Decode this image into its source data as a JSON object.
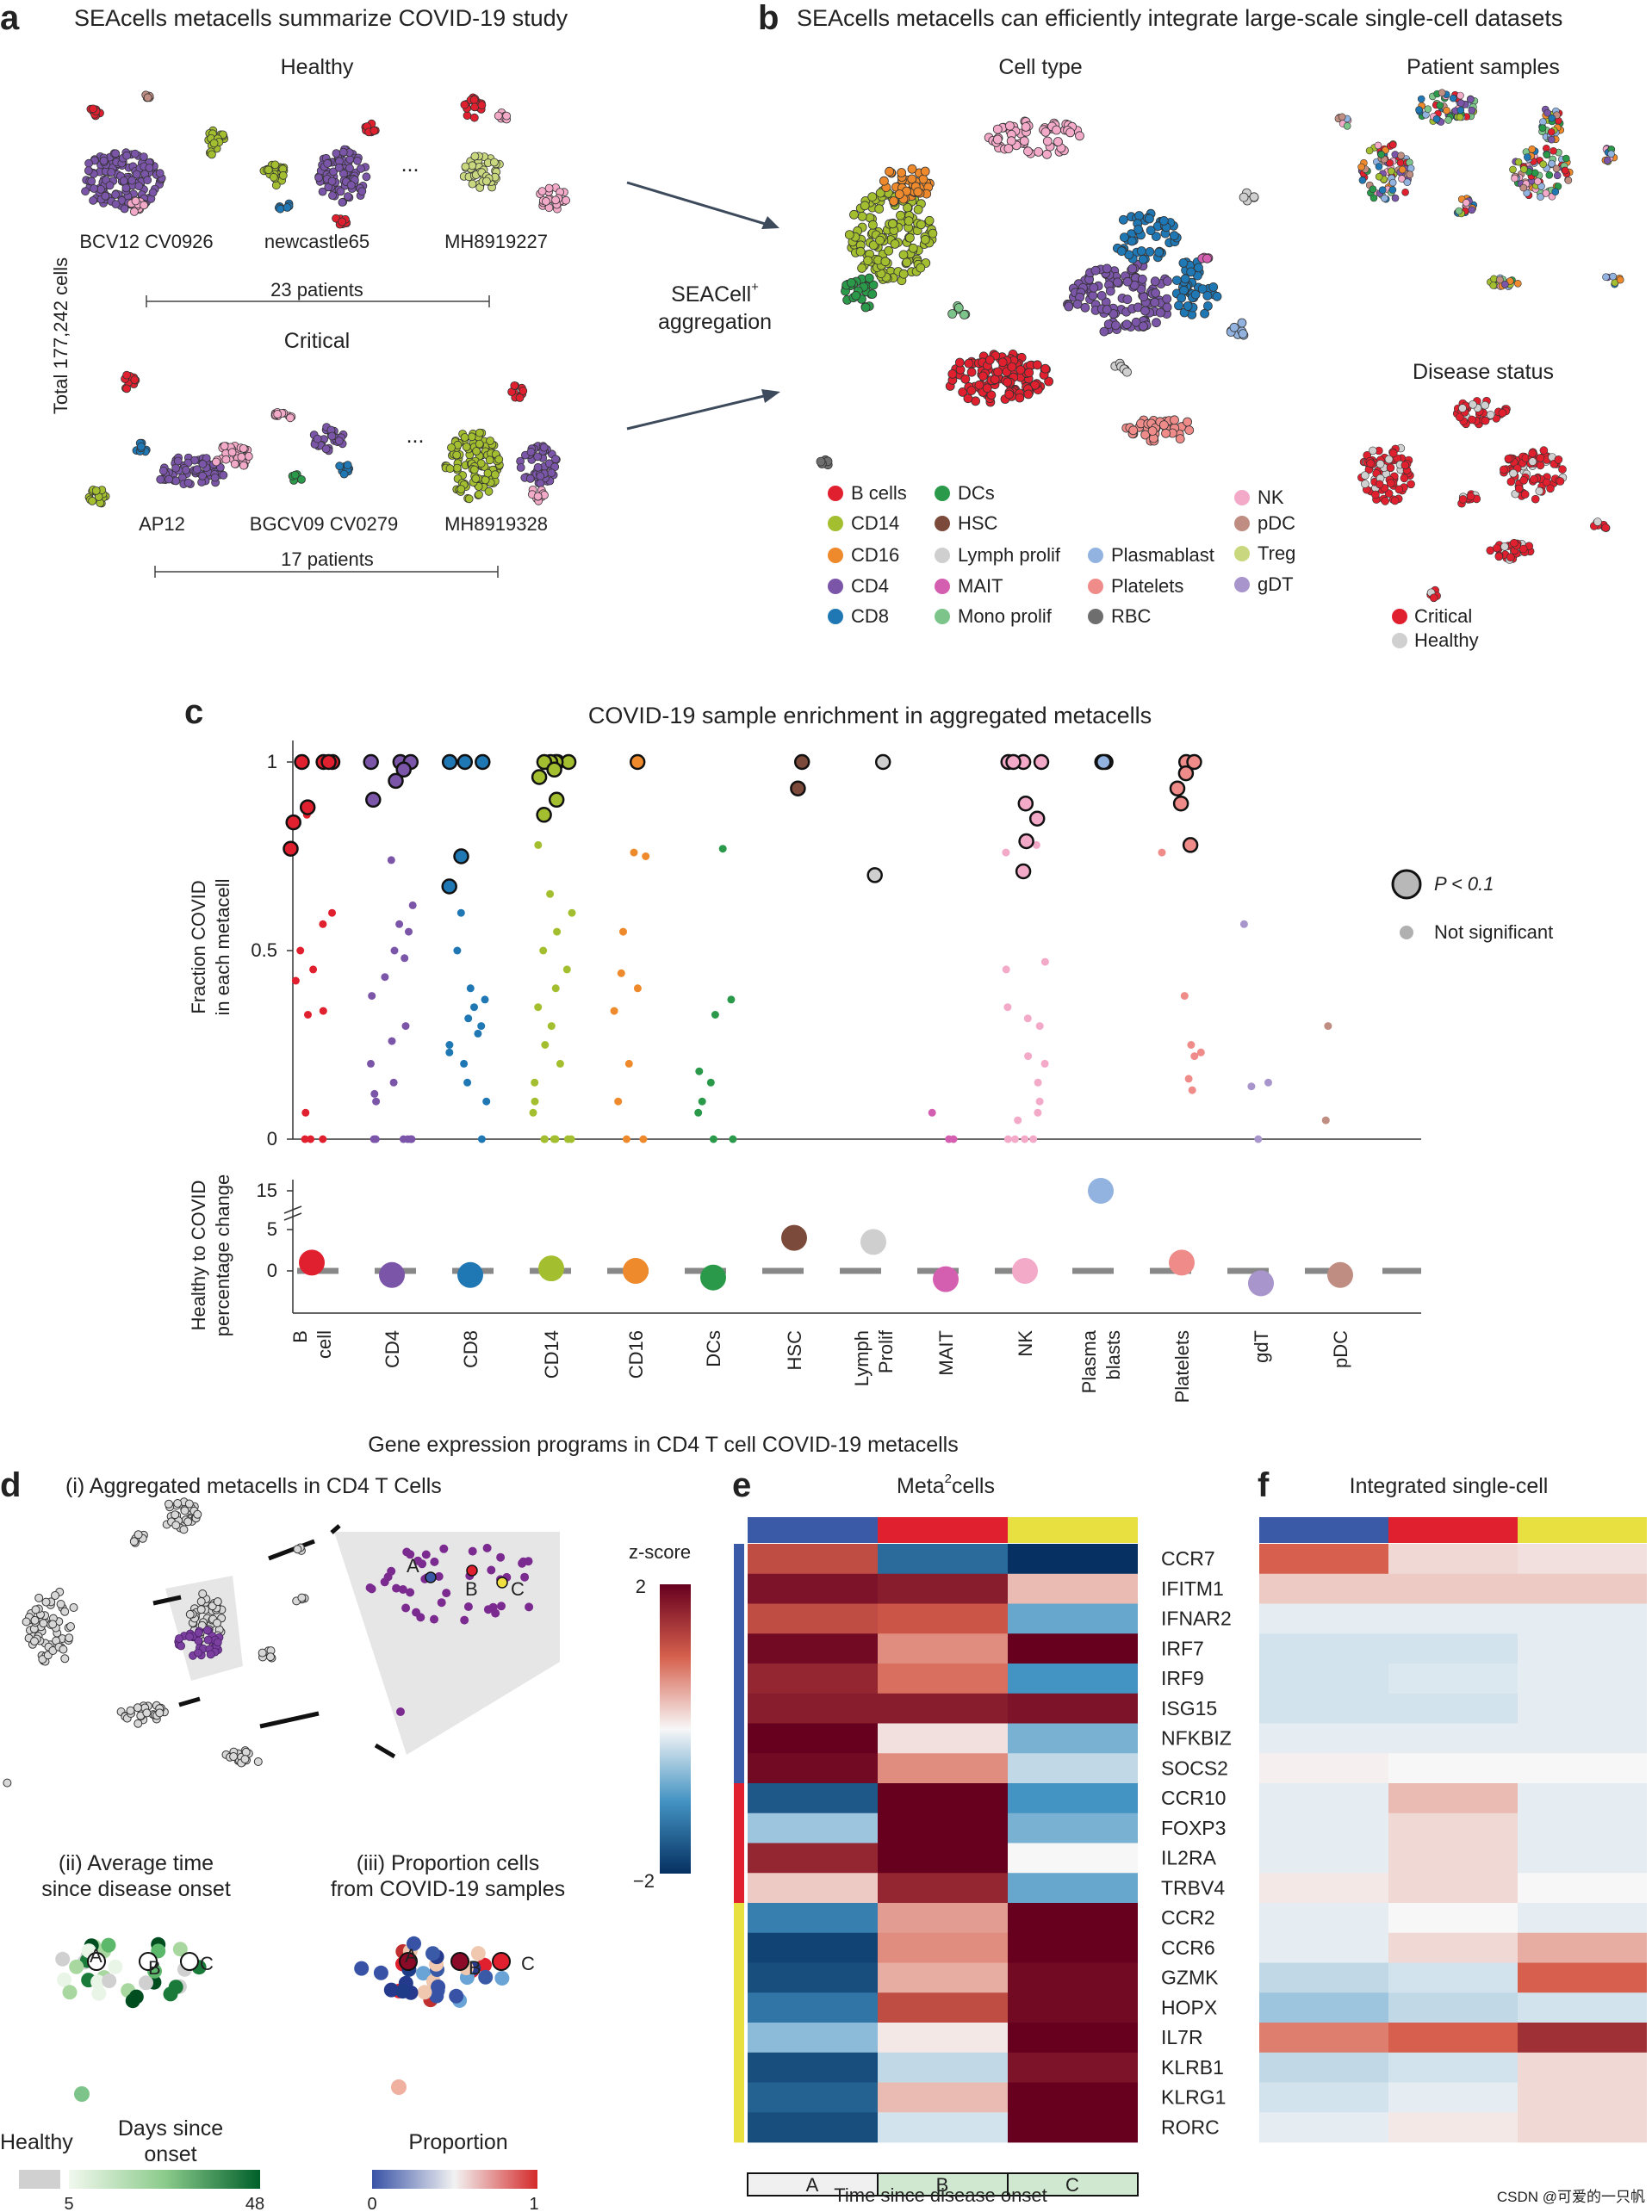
{
  "panel_a": {
    "label": "a",
    "title": "SEAcells metacells summarize COVID-19 study",
    "healthy_label": "Healthy",
    "critical_label": "Critical",
    "total_cells_label": "Total 177,242 cells",
    "ellipsis": "...",
    "healthy_samples": [
      "BCV12 CV0926",
      "newcastle65",
      "MH8919227"
    ],
    "critical_samples": [
      "AP12",
      "BGCV09 CV0279",
      "MH8919328"
    ],
    "healthy_count": "23 patients",
    "critical_count": "17 patients",
    "aggregation_label_1": "SEACell",
    "aggregation_sup": "+",
    "aggregation_label_2": "aggregation"
  },
  "panel_b": {
    "label": "b",
    "title": "SEAcells metacells can efficiently integrate large-scale single-cell datasets",
    "celltype_title": "Cell type",
    "patient_title": "Patient samples",
    "disease_title": "Disease status",
    "legend": [
      {
        "name": "B cells",
        "color": "#e0202e"
      },
      {
        "name": "CD14",
        "color": "#a3bf2f"
      },
      {
        "name": "CD16",
        "color": "#ee8a2c"
      },
      {
        "name": "CD4",
        "color": "#7b55a8"
      },
      {
        "name": "CD8",
        "color": "#1f77b4"
      },
      {
        "name": "DCs",
        "color": "#2a9a4a"
      },
      {
        "name": "HSC",
        "color": "#7b4a3a"
      },
      {
        "name": "Lymph prolif",
        "color": "#cfcfcf"
      },
      {
        "name": "MAIT",
        "color": "#d45fb0"
      },
      {
        "name": "Mono prolif",
        "color": "#7cc489"
      },
      {
        "name": "Plasmablast",
        "color": "#92b3e0"
      },
      {
        "name": "Platelets",
        "color": "#ef8c8a"
      },
      {
        "name": "RBC",
        "color": "#6e6e6e"
      },
      {
        "name": "NK",
        "color": "#f3a9c8"
      },
      {
        "name": "pDC",
        "color": "#c08d82"
      },
      {
        "name": "Treg",
        "color": "#c9d77e"
      },
      {
        "name": "gDT",
        "color": "#a895cc"
      }
    ],
    "disease_legend": [
      {
        "name": "Critical",
        "color": "#e0202e"
      },
      {
        "name": "Healthy",
        "color": "#d0d0d0"
      }
    ]
  },
  "panel_c": {
    "label": "c",
    "title": "COVID-19 sample enrichment in aggregated metacells",
    "ylabel_top_1": "Fraction COVID",
    "ylabel_top_2": "in each metacell",
    "ylabel_bottom_1": "Healthy to COVID",
    "ylabel_bottom_2": "percentage change",
    "sig_legend": "P < 0.1",
    "nonsig_legend": "Not significant"
  },
  "panel_def": {
    "title": "Gene expression programs in CD4 T cell COVID-19 metacells",
    "d_label": "d",
    "d_i": "(i) Aggregated metacells in CD4 T Cells",
    "d_ii_1": "(ii) Average time",
    "d_ii_2": "since disease onset",
    "d_iii_1": "(iii) Proportion cells",
    "d_iii_2": "from COVID-19 samples",
    "point_labels": [
      "A",
      "B",
      "C"
    ],
    "healthy_label": "Healthy",
    "days_label_1": "Days since",
    "days_label_2": "onset",
    "days_min": "5",
    "days_max": "48",
    "proportion_label": "Proportion",
    "prop_min": "0",
    "prop_max": "1",
    "zscore_label": "z-score",
    "z_max": "2",
    "z_min": "−2",
    "e_label": "e",
    "e_title_pre": "Meta",
    "e_title_sup": "2",
    "e_title_post": "cells",
    "f_label": "f",
    "f_title": "Integrated single-cell",
    "time_axis_label": "Time since disease onset",
    "watermark": "CSDN @可爱的一只帆"
  },
  "chart_data": [
    {
      "type": "scatter",
      "title": "COVID-19 sample enrichment in aggregated metacells",
      "ylabel": "Fraction COVID in each metacell",
      "ylim": [
        0,
        1
      ],
      "yticks": [
        0,
        0.5,
        1
      ],
      "categories": [
        "B cell",
        "CD4",
        "CD8",
        "CD14",
        "CD16",
        "DCs",
        "HSC",
        "Lymph Prolif",
        "MAIT",
        "NK",
        "Plasma blasts",
        "Platelets",
        "gdT",
        "pDC"
      ],
      "legend": [
        "P < 0.1",
        "Not significant"
      ],
      "series": [
        {
          "category": "B cell",
          "significant": [
            1,
            1,
            1,
            1,
            0.88,
            0.84,
            0.77
          ],
          "not_significant": [
            0.86,
            0.6,
            0.57,
            0.5,
            0.45,
            0.42,
            0.34,
            0.33,
            0.07,
            0,
            0,
            0
          ]
        },
        {
          "category": "CD4",
          "significant": [
            1,
            1,
            1,
            0.98,
            0.95,
            0.9
          ],
          "not_significant": [
            0.74,
            0.62,
            0.57,
            0.55,
            0.5,
            0.48,
            0.43,
            0.38,
            0.3,
            0.26,
            0.2,
            0.15,
            0.12,
            0.1,
            0,
            0,
            0,
            0,
            0,
            0
          ]
        },
        {
          "category": "CD8",
          "significant": [
            1,
            1,
            1,
            0.75,
            0.67
          ],
          "not_significant": [
            0.6,
            0.5,
            0.4,
            0.37,
            0.35,
            0.32,
            0.3,
            0.28,
            0.25,
            0.23,
            0.2,
            0.15,
            0.1,
            0
          ]
        },
        {
          "category": "CD14",
          "significant": [
            1,
            1,
            1,
            1,
            1,
            0.98,
            0.96,
            0.9,
            0.86
          ],
          "not_significant": [
            0.78,
            0.65,
            0.6,
            0.55,
            0.5,
            0.45,
            0.4,
            0.35,
            0.3,
            0.25,
            0.2,
            0.15,
            0.1,
            0.07,
            0,
            0,
            0,
            0,
            0,
            0
          ]
        },
        {
          "category": "CD16",
          "significant": [
            1
          ],
          "not_significant": [
            0.76,
            0.75,
            0.55,
            0.44,
            0.4,
            0.34,
            0.2,
            0.1,
            0,
            0
          ]
        },
        {
          "category": "DCs",
          "significant": [],
          "not_significant": [
            0.77,
            0.37,
            0.33,
            0.18,
            0.15,
            0.1,
            0.07,
            0,
            0
          ]
        },
        {
          "category": "HSC",
          "significant": [
            1,
            0.93
          ],
          "not_significant": []
        },
        {
          "category": "Lymph Prolif",
          "significant": [
            1,
            0.7
          ],
          "not_significant": []
        },
        {
          "category": "MAIT",
          "significant": [],
          "not_significant": [
            0.07,
            0,
            0
          ]
        },
        {
          "category": "NK",
          "significant": [
            1,
            1,
            1,
            1,
            0.89,
            0.85,
            0.79,
            0.71
          ],
          "not_significant": [
            0.78,
            0.76,
            0.47,
            0.45,
            0.35,
            0.32,
            0.3,
            0.22,
            0.2,
            0.15,
            0.1,
            0.07,
            0.05,
            0,
            0,
            0,
            0
          ]
        },
        {
          "category": "Plasma blasts",
          "significant": [
            1,
            1,
            1
          ],
          "not_significant": []
        },
        {
          "category": "Platelets",
          "significant": [
            1,
            1,
            0.97,
            0.93,
            0.89,
            0.78
          ],
          "not_significant": [
            0.76,
            0.38,
            0.25,
            0.23,
            0.22,
            0.16,
            0.13
          ]
        },
        {
          "category": "gdT",
          "significant": [],
          "not_significant": [
            0.57,
            0.15,
            0.14,
            0
          ]
        },
        {
          "category": "pDC",
          "significant": [],
          "not_significant": [
            0.3,
            0.05
          ]
        }
      ]
    },
    {
      "type": "scatter",
      "ylabel": "Healthy to COVID percentage change",
      "yticks": [
        0,
        5,
        15
      ],
      "categories": [
        "B cell",
        "CD4",
        "CD8",
        "CD14",
        "CD16",
        "DCs",
        "HSC",
        "Lymph Prolif",
        "MAIT",
        "NK",
        "Plasma blasts",
        "Platelets",
        "gdT",
        "pDC"
      ],
      "values": [
        1.0,
        -0.5,
        -0.5,
        0.3,
        0.0,
        -0.8,
        4.0,
        3.5,
        -1.0,
        0.0,
        15.0,
        1.0,
        -1.5,
        -0.5
      ]
    },
    {
      "type": "heatmap",
      "title": "Meta2cells",
      "columns": [
        "A",
        "B",
        "C"
      ],
      "xlabel": "Time since disease onset",
      "colorbar_label": "z-score",
      "zlim": [
        -2,
        2
      ],
      "genes": [
        "CCR7",
        "IFITM1",
        "IFNAR2",
        "IRF7",
        "IRF9",
        "ISG15",
        "NFKBIZ",
        "SOCS2",
        "CCR10",
        "FOXP3",
        "IL2RA",
        "TRBV4",
        "CCR2",
        "CCR6",
        "GZMK",
        "HOPX",
        "IL7R",
        "KLRB1",
        "KLRG1",
        "RORC"
      ],
      "gene_groups": [
        "A",
        "A",
        "A",
        "A",
        "A",
        "A",
        "A",
        "A",
        "B",
        "B",
        "B",
        "B",
        "C",
        "C",
        "C",
        "C",
        "C",
        "C",
        "C",
        "C"
      ],
      "values": [
        [
          1.2,
          -1.4,
          -2.0
        ],
        [
          1.8,
          1.7,
          0.4
        ],
        [
          1.2,
          1.1,
          -0.8
        ],
        [
          1.9,
          0.7,
          2.0
        ],
        [
          1.6,
          0.9,
          -1.0
        ],
        [
          1.7,
          1.7,
          1.8
        ],
        [
          2.0,
          0.15,
          -0.7
        ],
        [
          1.9,
          0.7,
          -0.3
        ],
        [
          -1.6,
          2.0,
          -1.0
        ],
        [
          -0.5,
          2.0,
          -0.7
        ],
        [
          1.6,
          2.0,
          0.0
        ],
        [
          0.3,
          1.6,
          -0.8
        ],
        [
          -1.2,
          0.6,
          2.0
        ],
        [
          -1.8,
          0.7,
          2.0
        ],
        [
          -1.7,
          0.5,
          1.9
        ],
        [
          -1.3,
          1.2,
          1.9
        ],
        [
          -0.6,
          0.1,
          2.0
        ],
        [
          -1.7,
          -0.3,
          1.8
        ],
        [
          -1.5,
          0.4,
          2.0
        ],
        [
          -1.7,
          -0.2,
          2.0
        ]
      ]
    },
    {
      "type": "heatmap",
      "title": "Integrated single-cell",
      "columns": [
        "A",
        "B",
        "C"
      ],
      "genes": [
        "CCR7",
        "IFITM1",
        "IFNAR2",
        "IRF7",
        "IRF9",
        "ISG15",
        "NFKBIZ",
        "SOCS2",
        "CCR10",
        "FOXP3",
        "IL2RA",
        "TRBV4",
        "CCR2",
        "CCR6",
        "GZMK",
        "HOPX",
        "IL7R",
        "KLRB1",
        "KLRG1",
        "RORC"
      ],
      "values": [
        [
          1.0,
          0.2,
          0.15
        ],
        [
          0.3,
          0.3,
          0.3
        ],
        [
          -0.1,
          -0.1,
          -0.1
        ],
        [
          -0.2,
          -0.2,
          -0.1
        ],
        [
          -0.2,
          -0.15,
          -0.1
        ],
        [
          -0.2,
          -0.2,
          -0.1
        ],
        [
          -0.1,
          -0.1,
          -0.1
        ],
        [
          0.05,
          0.0,
          0.0
        ],
        [
          -0.1,
          0.4,
          -0.1
        ],
        [
          -0.1,
          0.2,
          -0.1
        ],
        [
          -0.1,
          0.2,
          -0.1
        ],
        [
          0.1,
          0.2,
          0.0
        ],
        [
          -0.1,
          0.0,
          -0.1
        ],
        [
          -0.1,
          0.2,
          0.5
        ],
        [
          -0.3,
          -0.2,
          1.0
        ],
        [
          -0.5,
          -0.3,
          -0.2
        ],
        [
          0.8,
          1.0,
          1.5
        ],
        [
          -0.3,
          -0.2,
          0.2
        ],
        [
          -0.2,
          -0.1,
          0.2
        ],
        [
          -0.1,
          0.1,
          0.2
        ]
      ]
    }
  ]
}
